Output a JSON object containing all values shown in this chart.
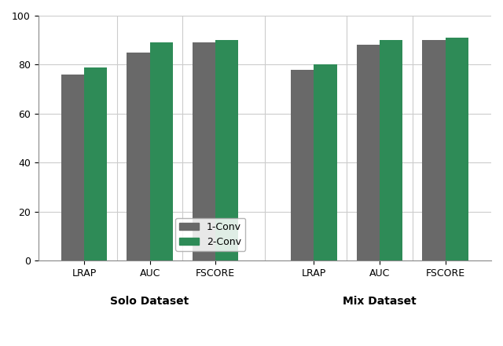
{
  "groups": [
    {
      "label": "LRAP",
      "dataset": "Solo Dataset",
      "conv1": 76,
      "conv2": 79
    },
    {
      "label": "AUC",
      "dataset": "Solo Dataset",
      "conv1": 85,
      "conv2": 89
    },
    {
      "label": "FSCORE",
      "dataset": "Solo Dataset",
      "conv1": 89,
      "conv2": 90
    },
    {
      "label": "LRAP",
      "dataset": "Mix Dataset",
      "conv1": 78,
      "conv2": 80
    },
    {
      "label": "AUC",
      "dataset": "Mix Dataset",
      "conv1": 88,
      "conv2": 90
    },
    {
      "label": "FSCORE",
      "dataset": "Mix Dataset",
      "conv1": 90,
      "conv2": 91
    }
  ],
  "color_conv1": "#696969",
  "color_conv2": "#2e8b57",
  "ylim": [
    0,
    100
  ],
  "yticks": [
    0,
    20,
    40,
    60,
    80,
    100
  ],
  "legend_labels": [
    "1-Conv",
    "2-Conv"
  ],
  "bar_width": 0.35,
  "dataset_labels": [
    "Solo Dataset",
    "Mix Dataset"
  ],
  "x_labels": [
    "LRAP",
    "AUC",
    "FSCORE",
    "LRAP",
    "AUC",
    "FSCORE"
  ],
  "solo_centers": [
    0.0,
    1.0,
    2.0
  ],
  "mix_centers": [
    3.5,
    4.5,
    5.5
  ],
  "figsize": [
    6.4,
    4.41
  ],
  "dpi": 100,
  "bg_color": "#ffffff",
  "grid_color": "#cccccc",
  "legend_loc": "lower center",
  "legend_fontsize": 9,
  "tick_fontsize": 9,
  "dataset_label_fontsize": 10,
  "vline_positions": [
    2.75
  ],
  "vline_color": "#aaaaaa"
}
